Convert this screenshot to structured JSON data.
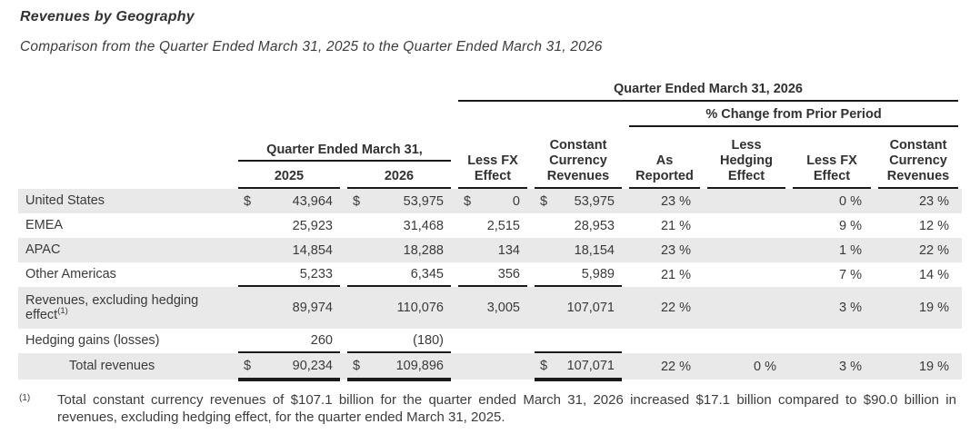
{
  "title": "Revenues by Geography",
  "subtitle": "Comparison from the Quarter Ended March 31, 2025 to the Quarter Ended March 31, 2026",
  "colors": {
    "row_shade": "#e9e9e9",
    "rule_line": "#1a1a1a",
    "text": "#3a3a3a"
  },
  "table": {
    "span_q2026": "Quarter Ended March 31, 2026",
    "span_pct_change": "% Change from Prior Period",
    "span_qe_mar31": "Quarter Ended March 31,",
    "col_2025": "2025",
    "col_2026": "2026",
    "col_less_fx": "Less FX Effect",
    "col_cc_rev": "Constant Currency Revenues",
    "col_as_reported": "As Reported",
    "col_less_hedging": "Less Hedging Effect",
    "col_less_fx_pct": "Less FX Effect",
    "col_cc_rev_pct": "Constant Currency Revenues",
    "rows": [
      {
        "label": "United States",
        "sup": "",
        "s2025": "$",
        "v2025": "43,964",
        "s2026": "$",
        "v2026": "53,975",
        "sfx": "$",
        "vfx": "0",
        "scc": "$",
        "vcc": "53,975",
        "as_reported": "23 %",
        "less_hedging": "",
        "less_fx": "0 %",
        "cc_rev": "23 %"
      },
      {
        "label": "EMEA",
        "sup": "",
        "s2025": "",
        "v2025": "25,923",
        "s2026": "",
        "v2026": "31,468",
        "sfx": "",
        "vfx": "2,515",
        "scc": "",
        "vcc": "28,953",
        "as_reported": "21 %",
        "less_hedging": "",
        "less_fx": "9 %",
        "cc_rev": "12 %"
      },
      {
        "label": "APAC",
        "sup": "",
        "s2025": "",
        "v2025": "14,854",
        "s2026": "",
        "v2026": "18,288",
        "sfx": "",
        "vfx": "134",
        "scc": "",
        "vcc": "18,154",
        "as_reported": "23 %",
        "less_hedging": "",
        "less_fx": "1 %",
        "cc_rev": "22 %"
      },
      {
        "label": "Other Americas",
        "sup": "",
        "s2025": "",
        "v2025": "5,233",
        "s2026": "",
        "v2026": "6,345",
        "sfx": "",
        "vfx": "356",
        "scc": "",
        "vcc": "5,989",
        "as_reported": "21 %",
        "less_hedging": "",
        "less_fx": "7 %",
        "cc_rev": "14 %"
      },
      {
        "label": "Revenues, excluding hedging effect",
        "sup": "(1)",
        "s2025": "",
        "v2025": "89,974",
        "s2026": "",
        "v2026": "110,076",
        "sfx": "",
        "vfx": "3,005",
        "scc": "",
        "vcc": "107,071",
        "as_reported": "22 %",
        "less_hedging": "",
        "less_fx": "3 %",
        "cc_rev": "19 %"
      },
      {
        "label": "Hedging gains (losses)",
        "sup": "",
        "s2025": "",
        "v2025": "260",
        "s2026": "",
        "v2026": "(180)",
        "sfx": "",
        "vfx": "",
        "scc": "",
        "vcc": "",
        "as_reported": "",
        "less_hedging": "",
        "less_fx": "",
        "cc_rev": ""
      },
      {
        "label": "Total revenues",
        "sup": "",
        "s2025": "$",
        "v2025": "90,234",
        "s2026": "$",
        "v2026": "109,896",
        "sfx": "",
        "vfx": "",
        "scc": "$",
        "vcc": "107,071",
        "as_reported": "22 %",
        "less_hedging": "0 %",
        "less_fx": "3 %",
        "cc_rev": "19 %"
      }
    ]
  },
  "footnote": {
    "marker": "(1)",
    "text": "Total constant currency revenues of $107.1 billion for the quarter ended March 31, 2026 increased $17.1 billion compared to $90.0 billion in revenues, excluding hedging effect, for the quarter ended March 31, 2025."
  }
}
